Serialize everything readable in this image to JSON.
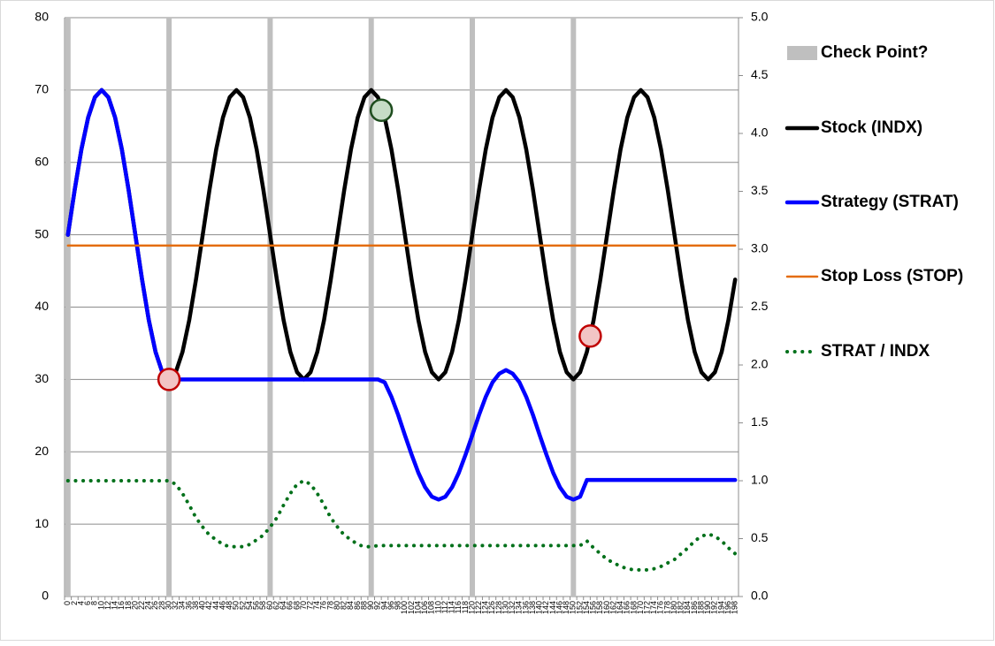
{
  "chart_data": {
    "type": "line",
    "categories": [
      0,
      2,
      4,
      6,
      8,
      10,
      12,
      14,
      16,
      18,
      20,
      22,
      24,
      26,
      28,
      30,
      32,
      34,
      36,
      38,
      40,
      42,
      44,
      46,
      48,
      50,
      52,
      54,
      56,
      58,
      60,
      62,
      64,
      66,
      68,
      70,
      72,
      74,
      76,
      78,
      80,
      82,
      84,
      86,
      88,
      90,
      92,
      94,
      96,
      98,
      100,
      102,
      104,
      106,
      108,
      110,
      112,
      114,
      116,
      118,
      120,
      122,
      124,
      126,
      128,
      130,
      132,
      134,
      136,
      138,
      140,
      142,
      144,
      146,
      148,
      150,
      152,
      154,
      156,
      158,
      160,
      162,
      164,
      166,
      168,
      170,
      172,
      174,
      176,
      178,
      180,
      182,
      184,
      186,
      188,
      190,
      192,
      194,
      196,
      198
    ],
    "ylim": [
      0,
      80
    ],
    "yticks": [
      0,
      10,
      20,
      30,
      40,
      50,
      60,
      70,
      80
    ],
    "y2lim": [
      0,
      5
    ],
    "y2ticks": [
      {
        "value": 0,
        "label": "0.0"
      },
      0.5,
      {
        "value": 1,
        "label": "1.0"
      },
      1.5,
      {
        "value": 2,
        "label": "2.0"
      },
      2.5,
      {
        "value": 3,
        "label": "3.0"
      },
      3.5,
      {
        "value": 4,
        "label": "4.0"
      },
      4.5,
      {
        "value": 5,
        "label": "5.0"
      }
    ],
    "grid": true,
    "series": [
      {
        "name": "Check Point?",
        "kind": "bar",
        "color": "#bfbfbf",
        "values": [
          80,
          null,
          null,
          null,
          null,
          null,
          null,
          null,
          null,
          null,
          null,
          null,
          null,
          null,
          null,
          80,
          null,
          null,
          null,
          null,
          null,
          null,
          null,
          null,
          null,
          null,
          null,
          null,
          null,
          null,
          80,
          null,
          null,
          null,
          null,
          null,
          null,
          null,
          null,
          null,
          null,
          null,
          null,
          null,
          null,
          80,
          null,
          null,
          null,
          null,
          null,
          null,
          null,
          null,
          null,
          null,
          null,
          null,
          null,
          null,
          80,
          null,
          null,
          null,
          null,
          null,
          null,
          null,
          null,
          null,
          null,
          null,
          null,
          null,
          null,
          80,
          null,
          null,
          null,
          null,
          null,
          null,
          null,
          null,
          null,
          null,
          null,
          null,
          null,
          null,
          null,
          null,
          null,
          null,
          null,
          null,
          null,
          null,
          null,
          null
        ]
      },
      {
        "name": "Stock (INDX)",
        "kind": "line",
        "color": "#000000",
        "values": [
          50,
          56.2,
          61.8,
          66.2,
          69,
          70,
          69,
          66.2,
          61.8,
          56.2,
          50,
          43.8,
          38.2,
          33.8,
          31,
          30,
          31,
          33.8,
          38.2,
          43.8,
          50,
          56.2,
          61.8,
          66.2,
          69,
          70,
          69,
          66.2,
          61.8,
          56.2,
          50,
          43.8,
          38.2,
          33.8,
          31,
          30,
          31,
          33.8,
          38.2,
          43.8,
          50,
          56.2,
          61.8,
          66.2,
          69,
          70,
          69,
          66.2,
          61.8,
          56.2,
          50,
          43.8,
          38.2,
          33.8,
          31,
          30,
          31,
          33.8,
          38.2,
          43.8,
          50,
          56.2,
          61.8,
          66.2,
          69,
          70,
          69,
          66.2,
          61.8,
          56.2,
          50,
          43.8,
          38.2,
          33.8,
          31,
          30,
          31,
          33.8,
          38.2,
          43.8,
          50,
          56.2,
          61.8,
          66.2,
          69,
          70,
          69,
          66.2,
          61.8,
          56.2,
          50,
          43.8,
          38.2,
          33.8,
          31,
          30,
          31,
          33.8,
          38.2,
          43.8
        ]
      },
      {
        "name": "Strategy (STRAT)",
        "kind": "line",
        "color": "#0000ff",
        "values": [
          50,
          56.2,
          61.8,
          66.2,
          69,
          70,
          69,
          66.2,
          61.8,
          56.2,
          50,
          43.8,
          38.2,
          33.8,
          31,
          30,
          30,
          30,
          30,
          30,
          30,
          30,
          30,
          30,
          30,
          30,
          30,
          30,
          30,
          30,
          30,
          30,
          30,
          30,
          30,
          30,
          30,
          30,
          30,
          30,
          30,
          30,
          30,
          30,
          30,
          30,
          30,
          29.6,
          27.6,
          25.1,
          22.3,
          19.6,
          17.1,
          15.1,
          13.8,
          13.4,
          13.8,
          15.1,
          17.1,
          19.6,
          22.3,
          25.1,
          27.6,
          29.6,
          30.8,
          31.3,
          30.8,
          29.6,
          27.6,
          25.1,
          22.3,
          19.6,
          17.1,
          15.1,
          13.8,
          13.4,
          13.8,
          16.1,
          16.1,
          16.1,
          16.1,
          16.1,
          16.1,
          16.1,
          16.1,
          16.1,
          16.1,
          16.1,
          16.1,
          16.1,
          16.1,
          16.1,
          16.1,
          16.1,
          16.1,
          16.1,
          16.1,
          16.1,
          16.1,
          16.1
        ]
      },
      {
        "name": "Stop Loss (STOP)",
        "kind": "line",
        "color": "#e46c0a",
        "values": [
          48.5,
          48.5,
          48.5,
          48.5,
          48.5,
          48.5,
          48.5,
          48.5,
          48.5,
          48.5,
          48.5,
          48.5,
          48.5,
          48.5,
          48.5,
          48.5,
          48.5,
          48.5,
          48.5,
          48.5,
          48.5,
          48.5,
          48.5,
          48.5,
          48.5,
          48.5,
          48.5,
          48.5,
          48.5,
          48.5,
          48.5,
          48.5,
          48.5,
          48.5,
          48.5,
          48.5,
          48.5,
          48.5,
          48.5,
          48.5,
          48.5,
          48.5,
          48.5,
          48.5,
          48.5,
          48.5,
          48.5,
          48.5,
          48.5,
          48.5,
          48.5,
          48.5,
          48.5,
          48.5,
          48.5,
          48.5,
          48.5,
          48.5,
          48.5,
          48.5,
          48.5,
          48.5,
          48.5,
          48.5,
          48.5,
          48.5,
          48.5,
          48.5,
          48.5,
          48.5,
          48.5,
          48.5,
          48.5,
          48.5,
          48.5,
          48.5,
          48.5,
          48.5,
          48.5,
          48.5,
          48.5,
          48.5,
          48.5,
          48.5,
          48.5,
          48.5,
          48.5,
          48.5,
          48.5,
          48.5,
          48.5,
          48.5,
          48.5,
          48.5,
          48.5,
          48.5,
          48.5,
          48.5,
          48.5,
          48.5
        ]
      },
      {
        "name": "STRAT / INDX",
        "kind": "dotted",
        "axis": "y2",
        "color": "#00701a",
        "values": [
          1,
          1,
          1,
          1,
          1,
          1,
          1,
          1,
          1,
          1,
          1,
          1,
          1,
          1,
          1,
          1,
          0.97,
          0.89,
          0.79,
          0.68,
          0.6,
          0.53,
          0.49,
          0.45,
          0.43,
          0.43,
          0.43,
          0.45,
          0.49,
          0.53,
          0.6,
          0.68,
          0.79,
          0.89,
          0.97,
          1,
          0.97,
          0.89,
          0.79,
          0.68,
          0.6,
          0.53,
          0.49,
          0.45,
          0.43,
          0.43,
          0.44,
          0.44,
          0.44,
          0.44,
          0.44,
          0.44,
          0.44,
          0.44,
          0.44,
          0.44,
          0.44,
          0.44,
          0.44,
          0.44,
          0.44,
          0.44,
          0.44,
          0.44,
          0.44,
          0.44,
          0.44,
          0.44,
          0.44,
          0.44,
          0.44,
          0.44,
          0.44,
          0.44,
          0.44,
          0.44,
          0.44,
          0.48,
          0.42,
          0.37,
          0.32,
          0.29,
          0.26,
          0.24,
          0.23,
          0.23,
          0.23,
          0.24,
          0.26,
          0.29,
          0.32,
          0.37,
          0.42,
          0.48,
          0.52,
          0.54,
          0.52,
          0.48,
          0.42,
          0.37
        ]
      }
    ],
    "markers": [
      {
        "x": 30,
        "y": 30,
        "color": "#f2c4c4",
        "stroke": "#c00000"
      },
      {
        "x": 93,
        "y": 67.2,
        "color": "#c6dcc6",
        "stroke": "#1e4d1e"
      },
      {
        "x": 155,
        "y": 36,
        "color": "#f2c4c4",
        "stroke": "#c00000"
      }
    ]
  }
}
